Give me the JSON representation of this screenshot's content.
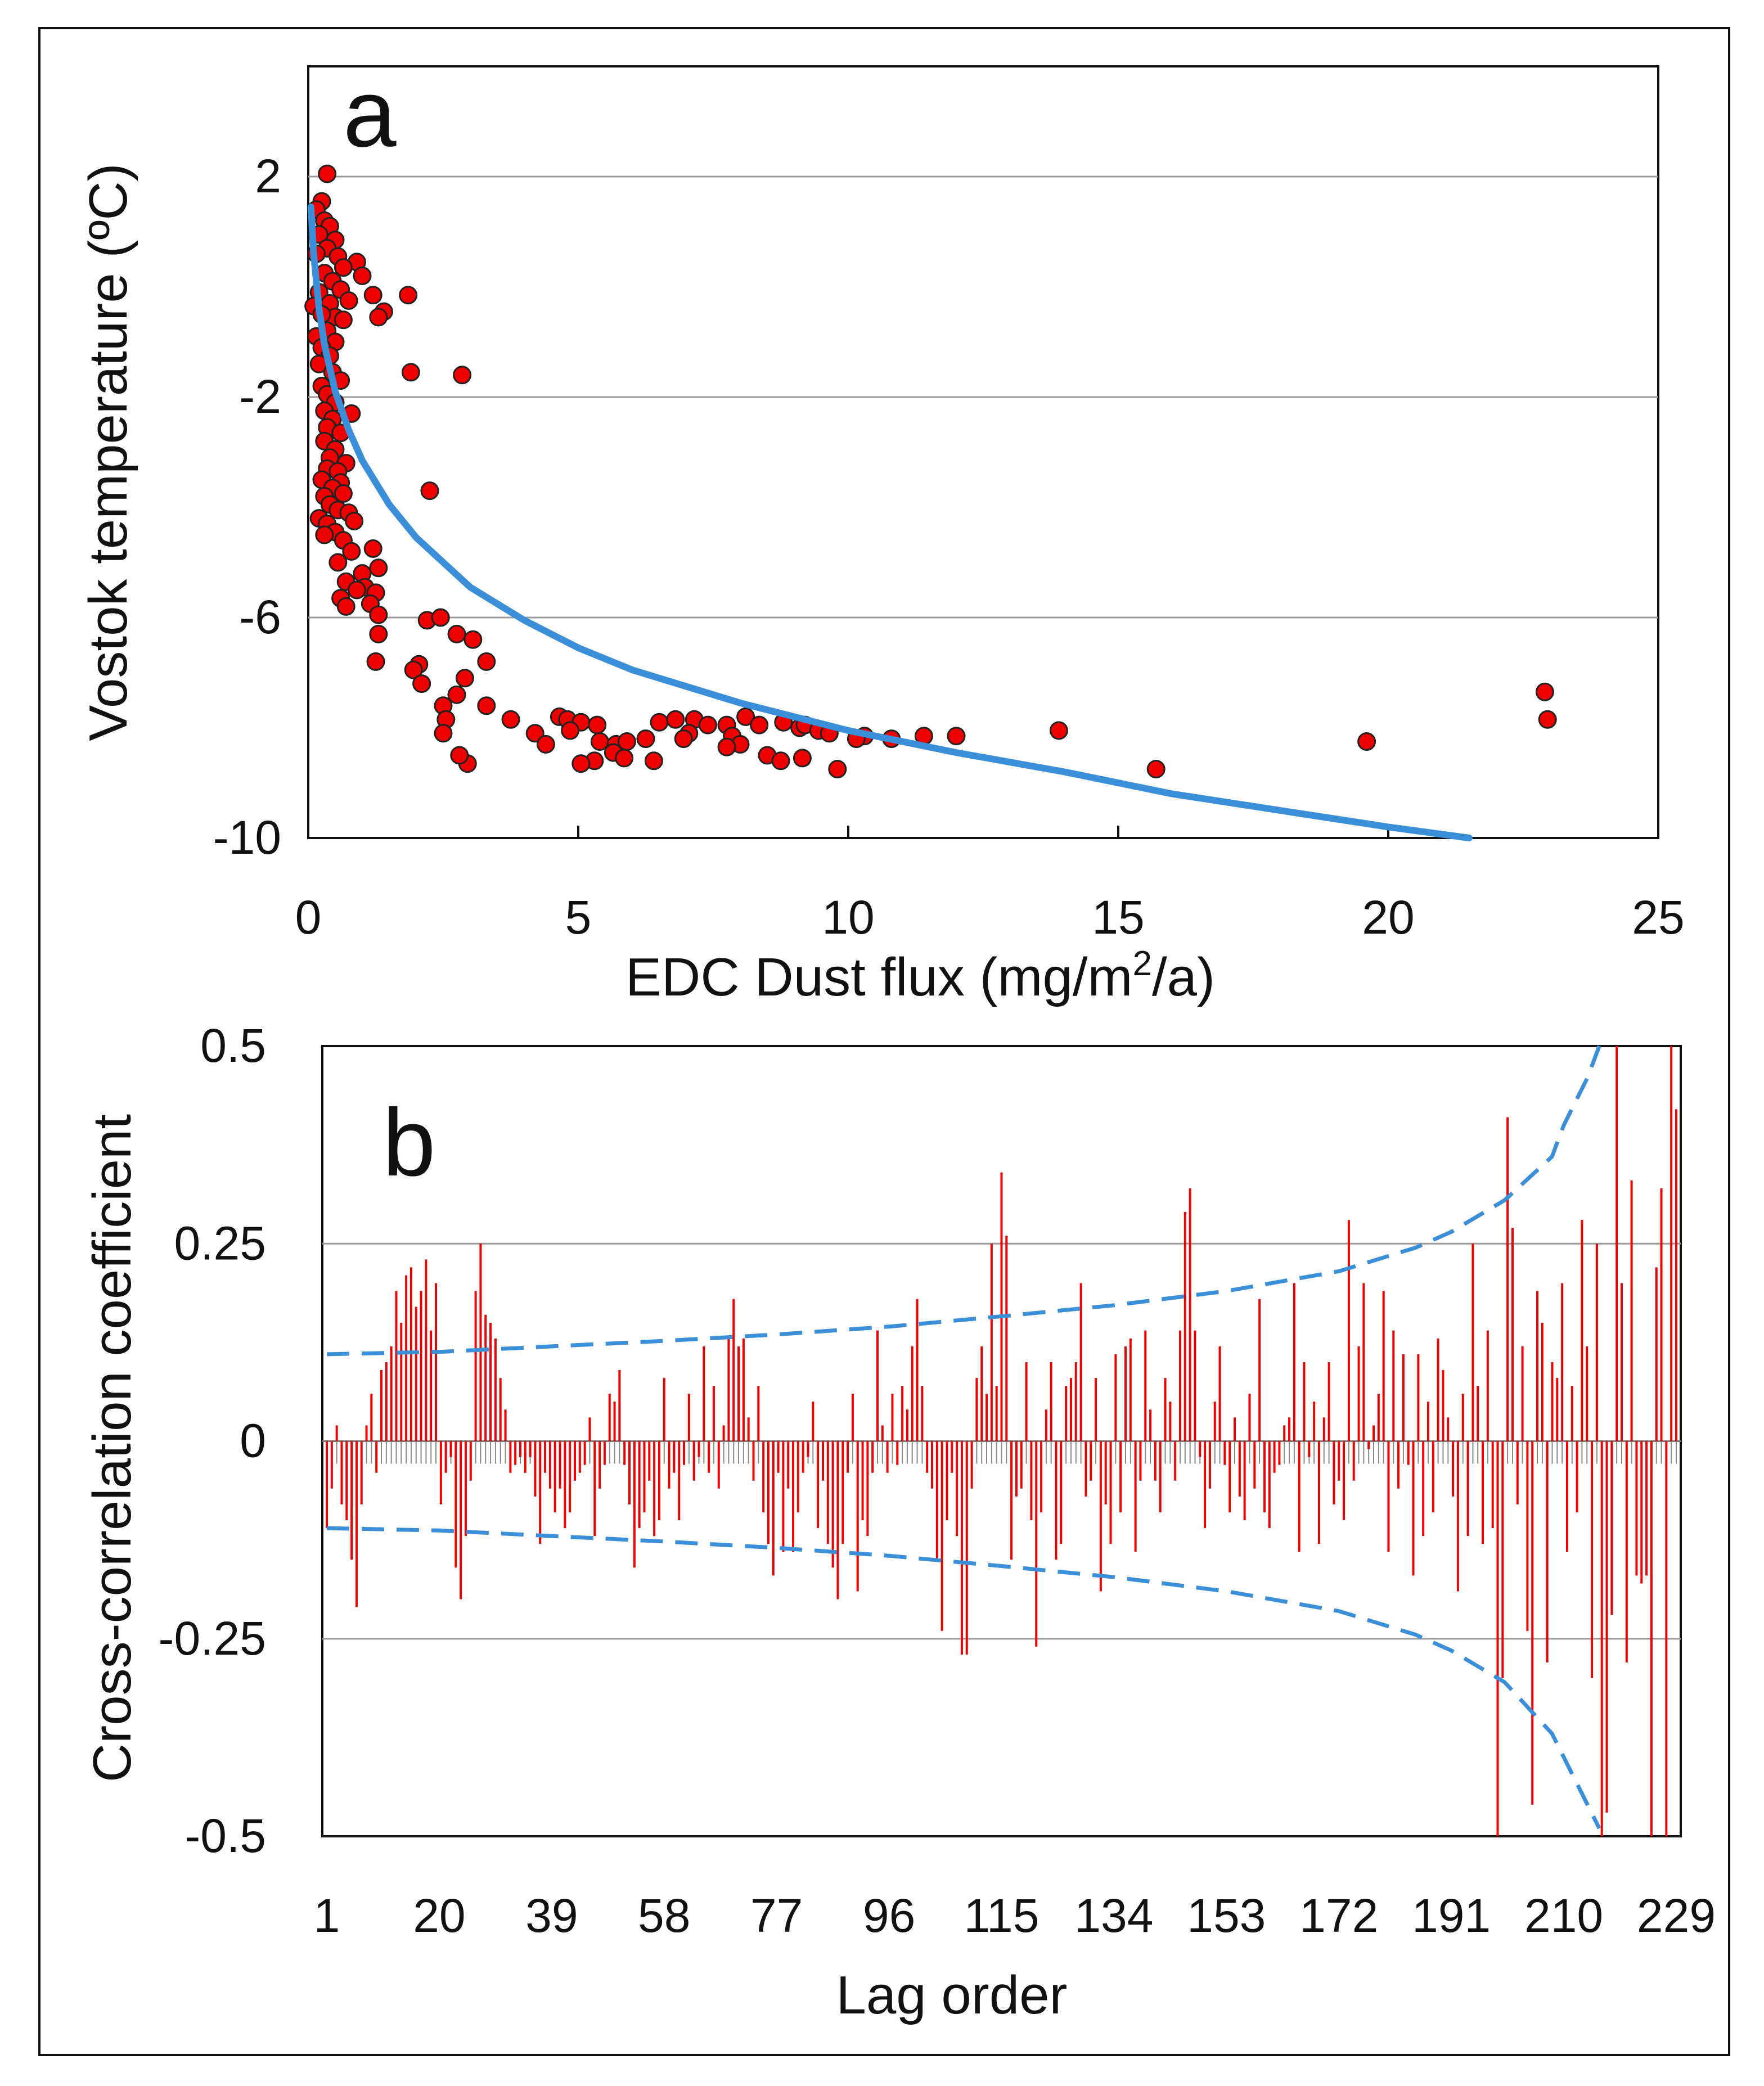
{
  "chart_data": [
    {
      "type": "scatter",
      "panel_label": "a",
      "xlabel": "EDC Dust flux (mg/m",
      "xlabel_sup": "2",
      "xlabel_tail": "/a)",
      "ylabel": "Vostok temperature (ºC)",
      "xlim": [
        0,
        25
      ],
      "ylim": [
        -10,
        4
      ],
      "xticks": [
        "0",
        "5",
        "10",
        "15",
        "20",
        "25"
      ],
      "yticks": [
        "2",
        "-2",
        "-6",
        "-10"
      ],
      "grid": "horizontal",
      "marker_color": "#ee0000",
      "fit_color": "#3b8fd9",
      "fit_curve": {
        "x": [
          0.05,
          0.1,
          0.2,
          0.3,
          0.5,
          0.75,
          1,
          1.5,
          2,
          3,
          4,
          5,
          6,
          8,
          10,
          12,
          14,
          16,
          18,
          20,
          21.5
        ],
        "y": [
          1.45,
          0.6,
          -0.4,
          -1.05,
          -1.9,
          -2.6,
          -3.15,
          -3.95,
          -4.55,
          -5.45,
          -6.05,
          -6.55,
          -6.95,
          -7.55,
          -8.05,
          -8.45,
          -8.8,
          -9.2,
          -9.5,
          -9.8,
          -10.0
        ]
      },
      "points": [
        [
          0.35,
          2.05
        ],
        [
          0.25,
          1.55
        ],
        [
          0.15,
          1.4
        ],
        [
          0.3,
          1.2
        ],
        [
          0.4,
          1.1
        ],
        [
          0.2,
          0.95
        ],
        [
          0.5,
          0.85
        ],
        [
          0.35,
          0.7
        ],
        [
          0.15,
          0.6
        ],
        [
          0.55,
          0.55
        ],
        [
          0.9,
          0.45
        ],
        [
          0.65,
          0.35
        ],
        [
          1.0,
          0.2
        ],
        [
          0.3,
          0.25
        ],
        [
          0.45,
          0.1
        ],
        [
          0.2,
          -0.1
        ],
        [
          0.6,
          -0.05
        ],
        [
          0.75,
          -0.25
        ],
        [
          0.4,
          -0.3
        ],
        [
          0.1,
          -0.35
        ],
        [
          1.2,
          -0.15
        ],
        [
          1.85,
          -0.15
        ],
        [
          1.4,
          -0.45
        ],
        [
          1.3,
          -0.55
        ],
        [
          0.5,
          -0.55
        ],
        [
          0.25,
          -0.5
        ],
        [
          0.65,
          -0.6
        ],
        [
          0.35,
          -0.8
        ],
        [
          0.15,
          -0.9
        ],
        [
          0.5,
          -1.0
        ],
        [
          0.25,
          -1.1
        ],
        [
          0.4,
          -1.25
        ],
        [
          0.2,
          -1.4
        ],
        [
          0.45,
          -1.55
        ],
        [
          0.6,
          -1.7
        ],
        [
          1.9,
          -1.55
        ],
        [
          2.85,
          -1.6
        ],
        [
          0.25,
          -1.8
        ],
        [
          0.35,
          -1.95
        ],
        [
          0.5,
          -2.1
        ],
        [
          0.3,
          -2.25
        ],
        [
          0.8,
          -2.3
        ],
        [
          0.45,
          -2.4
        ],
        [
          0.35,
          -2.55
        ],
        [
          0.6,
          -2.65
        ],
        [
          0.3,
          -2.8
        ],
        [
          0.5,
          -2.95
        ],
        [
          0.4,
          -3.1
        ],
        [
          0.7,
          -3.2
        ],
        [
          0.35,
          -3.3
        ],
        [
          0.55,
          -3.35
        ],
        [
          0.25,
          -3.5
        ],
        [
          0.6,
          -3.55
        ],
        [
          0.45,
          -3.65
        ],
        [
          0.3,
          -3.8
        ],
        [
          0.65,
          -3.75
        ],
        [
          2.25,
          -3.7
        ],
        [
          0.4,
          -3.95
        ],
        [
          0.55,
          -4.05
        ],
        [
          0.75,
          -4.1
        ],
        [
          0.2,
          -4.2
        ],
        [
          0.35,
          -4.3
        ],
        [
          0.5,
          -4.45
        ],
        [
          0.85,
          -4.25
        ],
        [
          0.3,
          -4.5
        ],
        [
          0.65,
          -4.6
        ],
        [
          0.8,
          -4.8
        ],
        [
          1.2,
          -4.75
        ],
        [
          0.55,
          -5.0
        ],
        [
          1.3,
          -5.1
        ],
        [
          1.0,
          -5.2
        ],
        [
          0.7,
          -5.35
        ],
        [
          1.05,
          -5.45
        ],
        [
          0.9,
          -5.5
        ],
        [
          1.25,
          -5.55
        ],
        [
          0.6,
          -5.65
        ],
        [
          1.15,
          -5.75
        ],
        [
          0.7,
          -5.8
        ],
        [
          1.3,
          -5.95
        ],
        [
          2.2,
          -6.05
        ],
        [
          2.45,
          -6.0
        ],
        [
          1.3,
          -6.3
        ],
        [
          2.75,
          -6.3
        ],
        [
          3.05,
          -6.4
        ],
        [
          1.25,
          -6.8
        ],
        [
          2.05,
          -6.85
        ],
        [
          3.3,
          -6.8
        ],
        [
          1.95,
          -6.95
        ],
        [
          2.9,
          -7.1
        ],
        [
          2.1,
          -7.2
        ],
        [
          2.75,
          -7.4
        ],
        [
          2.5,
          -7.6
        ],
        [
          3.3,
          -7.6
        ],
        [
          2.55,
          -7.85
        ],
        [
          3.75,
          -7.85
        ],
        [
          2.5,
          -8.1
        ],
        [
          4.2,
          -8.1
        ],
        [
          4.65,
          -7.8
        ],
        [
          4.8,
          -7.85
        ],
        [
          5.05,
          -7.9
        ],
        [
          4.85,
          -8.05
        ],
        [
          5.35,
          -7.95
        ],
        [
          4.4,
          -8.3
        ],
        [
          5.4,
          -8.25
        ],
        [
          5.7,
          -8.3
        ],
        [
          5.9,
          -8.25
        ],
        [
          5.65,
          -8.45
        ],
        [
          5.85,
          -8.55
        ],
        [
          5.3,
          -8.6
        ],
        [
          5.05,
          -8.65
        ],
        [
          2.95,
          -8.65
        ],
        [
          2.8,
          -8.5
        ],
        [
          6.25,
          -8.2
        ],
        [
          6.5,
          -7.9
        ],
        [
          6.4,
          -8.6
        ],
        [
          6.8,
          -7.85
        ],
        [
          7.15,
          -7.85
        ],
        [
          7.4,
          -7.95
        ],
        [
          7.05,
          -8.1
        ],
        [
          6.95,
          -8.2
        ],
        [
          7.75,
          -7.95
        ],
        [
          8.1,
          -7.8
        ],
        [
          8.35,
          -7.95
        ],
        [
          7.85,
          -8.15
        ],
        [
          8.0,
          -8.3
        ],
        [
          7.75,
          -8.35
        ],
        [
          8.8,
          -7.9
        ],
        [
          9.1,
          -8.0
        ],
        [
          8.5,
          -8.5
        ],
        [
          8.75,
          -8.6
        ],
        [
          9.15,
          -8.55
        ],
        [
          9.2,
          -7.95
        ],
        [
          9.45,
          -8.05
        ],
        [
          9.65,
          -8.1
        ],
        [
          9.8,
          -8.75
        ],
        [
          10.3,
          -8.15
        ],
        [
          10.15,
          -8.2
        ],
        [
          10.8,
          -8.2
        ],
        [
          11.4,
          -8.15
        ],
        [
          12.0,
          -8.15
        ],
        [
          13.9,
          -8.05
        ],
        [
          15.7,
          -8.75
        ],
        [
          19.6,
          -8.25
        ],
        [
          22.95,
          -7.85
        ],
        [
          22.9,
          -7.35
        ]
      ]
    },
    {
      "type": "bar",
      "panel_label": "b",
      "xlabel": "Lag order",
      "ylabel": "Cross-correlation coefficient",
      "xlim": [
        1,
        229
      ],
      "ylim": [
        -0.5,
        0.5
      ],
      "xticks": [
        "1",
        "20",
        "39",
        "58",
        "77",
        "96",
        "115",
        "134",
        "153",
        "172",
        "191",
        "210",
        "229"
      ],
      "yticks": [
        "0.5",
        "0.25",
        "0",
        "-0.25",
        "-0.5"
      ],
      "grid": "horizontal",
      "bar_color": "#ee0000",
      "confidence_color": "#3b8fd9",
      "upper_confidence": {
        "x": [
          1,
          20,
          39,
          58,
          77,
          96,
          115,
          134,
          153,
          172,
          185,
          191,
          200,
          208,
          210,
          214,
          216
        ],
        "y": [
          0.11,
          0.113,
          0.12,
          0.127,
          0.135,
          0.145,
          0.158,
          0.172,
          0.19,
          0.215,
          0.245,
          0.265,
          0.305,
          0.36,
          0.4,
          0.46,
          0.5
        ]
      },
      "lower_confidence": {
        "x": [
          1,
          20,
          39,
          58,
          77,
          96,
          115,
          134,
          153,
          172,
          185,
          191,
          200,
          208,
          210,
          214,
          216
        ],
        "y": [
          -0.11,
          -0.113,
          -0.12,
          -0.127,
          -0.135,
          -0.145,
          -0.158,
          -0.172,
          -0.19,
          -0.215,
          -0.245,
          -0.265,
          -0.305,
          -0.37,
          -0.4,
          -0.46,
          -0.49
        ]
      },
      "coefficients": [
        -0.11,
        -0.06,
        0.02,
        -0.08,
        -0.1,
        -0.15,
        -0.21,
        -0.08,
        0.02,
        0.06,
        -0.04,
        0.09,
        0.1,
        0.12,
        0.19,
        0.15,
        0.21,
        0.22,
        0.17,
        0.19,
        0.23,
        0.14,
        0.2,
        -0.08,
        -0.04,
        -0.02,
        -0.16,
        -0.2,
        -0.12,
        -0.05,
        0.19,
        0.25,
        0.16,
        0.15,
        0.13,
        0.08,
        0.04,
        -0.04,
        -0.03,
        -0.02,
        -0.04,
        -0.02,
        -0.07,
        -0.13,
        -0.04,
        -0.06,
        -0.09,
        -0.06,
        -0.11,
        -0.09,
        -0.05,
        -0.04,
        -0.03,
        0.03,
        -0.12,
        -0.06,
        -0.03,
        0.06,
        0.05,
        0.09,
        -0.03,
        -0.08,
        -0.16,
        -0.11,
        -0.09,
        -0.05,
        -0.12,
        -0.1,
        0.08,
        -0.06,
        -0.04,
        -0.1,
        -0.03,
        0.06,
        -0.05,
        -0.02,
        0.12,
        -0.04,
        0.07,
        -0.06,
        0.02,
        0.13,
        0.18,
        0.12,
        0.13,
        0.03,
        -0.05,
        0.07,
        -0.09,
        -0.13,
        -0.17,
        -0.04,
        -0.14,
        -0.06,
        -0.14,
        -0.09,
        -0.04,
        -0.02,
        0.05,
        -0.11,
        -0.05,
        -0.13,
        -0.16,
        -0.2,
        -0.13,
        -0.04,
        0.06,
        -0.19,
        -0.1,
        -0.12,
        -0.04,
        0.14,
        0.02,
        -0.04,
        0.06,
        -0.03,
        0.07,
        0.04,
        0.12,
        0.18,
        0.07,
        -0.04,
        -0.06,
        -0.15,
        -0.24,
        -0.1,
        -0.04,
        -0.12,
        -0.27,
        -0.27,
        -0.06,
        0.08,
        0.12,
        0.06,
        0.25,
        0.07,
        0.34,
        0.26,
        -0.15,
        -0.07,
        -0.06,
        0.1,
        -0.1,
        -0.26,
        -0.09,
        0.04,
        0.1,
        -0.15,
        -0.13,
        0.07,
        0.08,
        0.1,
        0.2,
        -0.07,
        -0.05,
        0.08,
        -0.19,
        -0.08,
        -0.13,
        0.11,
        -0.09,
        0.12,
        0.13,
        -0.14,
        -0.05,
        0.14,
        0.04,
        -0.05,
        -0.09,
        0.08,
        0.05,
        -0.05,
        0.14,
        0.29,
        0.32,
        0.14,
        -0.02,
        -0.11,
        -0.06,
        0.05,
        0.12,
        -0.03,
        -0.09,
        0.03,
        -0.07,
        -0.1,
        0.06,
        -0.06,
        0.18,
        -0.09,
        -0.11,
        -0.04,
        -0.03,
        0.02,
        0.03,
        0.2,
        -0.14,
        0.1,
        -0.02,
        0.05,
        -0.13,
        0.03,
        0.1,
        -0.08,
        -0.05,
        -0.1,
        0.28,
        -0.05,
        0.12,
        0.2,
        -0.01,
        0.02,
        0.06,
        0.19,
        -0.14,
        0.14,
        -0.06,
        0.11,
        -0.03,
        -0.17,
        0.11,
        -0.12,
        0.05,
        -0.09,
        0.13,
        0.09,
        0.03,
        -0.07,
        -0.19,
        0.06,
        -0.12,
        0.25,
        0.07,
        -0.13,
        0.14,
        -0.11,
        -0.5,
        -0.3,
        0.41,
        0.27,
        -0.08,
        0.12,
        -0.24,
        -0.46,
        0.19,
        0.15,
        -0.28,
        0.1,
        0.08,
        0.2,
        -0.14,
        0.07,
        -0.09,
        0.28,
        0.12,
        -0.3,
        0.25,
        -0.5,
        -0.47,
        -0.22,
        0.55,
        0.2,
        -0.28,
        0.33,
        -0.17,
        -0.18,
        -0.17,
        -0.5,
        0.22,
        0.32,
        -0.5,
        0.5,
        0.42
      ]
    }
  ]
}
